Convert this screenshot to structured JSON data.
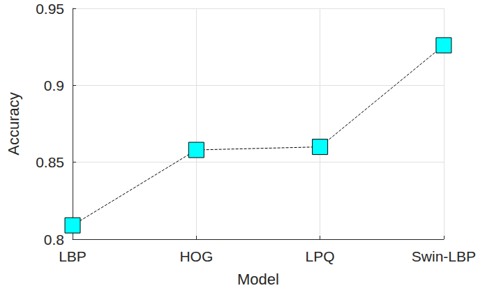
{
  "chart_data": {
    "type": "line",
    "x_label": "Model",
    "y_label": "Accuracy",
    "categories": [
      "LBP",
      "HOG",
      "LPQ",
      "Swin-LBP"
    ],
    "values": [
      0.809,
      0.858,
      0.86,
      0.926
    ],
    "color": "#00ffff",
    "marker": "square",
    "line_style": "dashed",
    "ylim": [
      0.8,
      0.95
    ],
    "yticks": [
      0.8,
      0.85,
      0.9,
      0.95
    ],
    "grid": true
  }
}
